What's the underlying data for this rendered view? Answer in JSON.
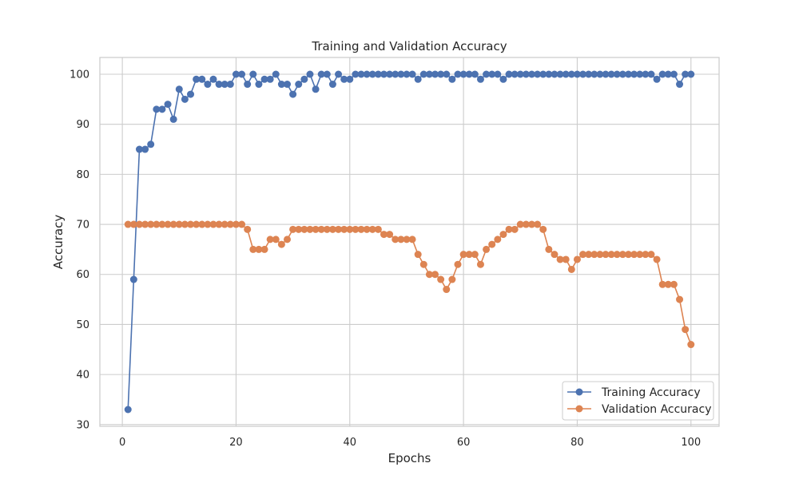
{
  "chart_data": {
    "type": "line",
    "title": "Training and Validation Accuracy",
    "xlabel": "Epochs",
    "ylabel": "Accuracy",
    "xlim": [
      -3.95,
      104.95
    ],
    "ylim": [
      29.65,
      103.35
    ],
    "xticks": [
      0,
      20,
      40,
      60,
      80,
      100
    ],
    "yticks": [
      30,
      40,
      50,
      60,
      70,
      80,
      90,
      100
    ],
    "grid": true,
    "legend": "lower-right",
    "x": [
      1,
      2,
      3,
      4,
      5,
      6,
      7,
      8,
      9,
      10,
      11,
      12,
      13,
      14,
      15,
      16,
      17,
      18,
      19,
      20,
      21,
      22,
      23,
      24,
      25,
      26,
      27,
      28,
      29,
      30,
      31,
      32,
      33,
      34,
      35,
      36,
      37,
      38,
      39,
      40,
      41,
      42,
      43,
      44,
      45,
      46,
      47,
      48,
      49,
      50,
      51,
      52,
      53,
      54,
      55,
      56,
      57,
      58,
      59,
      60,
      61,
      62,
      63,
      64,
      65,
      66,
      67,
      68,
      69,
      70,
      71,
      72,
      73,
      74,
      75,
      76,
      77,
      78,
      79,
      80,
      81,
      82,
      83,
      84,
      85,
      86,
      87,
      88,
      89,
      90,
      91,
      92,
      93,
      94,
      95,
      96,
      97,
      98,
      99,
      100
    ],
    "series": [
      {
        "name": "Training Accuracy",
        "color": "#4c72b0",
        "values": [
          33,
          59,
          85,
          85,
          86,
          93,
          93,
          94,
          91,
          97,
          95,
          96,
          99,
          99,
          98,
          99,
          98,
          98,
          98,
          100,
          100,
          98,
          100,
          98,
          99,
          99,
          100,
          98,
          98,
          96,
          98,
          99,
          100,
          97,
          100,
          100,
          98,
          100,
          99,
          99,
          100,
          100,
          100,
          100,
          100,
          100,
          100,
          100,
          100,
          100,
          100,
          99,
          100,
          100,
          100,
          100,
          100,
          99,
          100,
          100,
          100,
          100,
          99,
          100,
          100,
          100,
          99,
          100,
          100,
          100,
          100,
          100,
          100,
          100,
          100,
          100,
          100,
          100,
          100,
          100,
          100,
          100,
          100,
          100,
          100,
          100,
          100,
          100,
          100,
          100,
          100,
          100,
          100,
          99,
          100,
          100,
          100,
          98,
          100,
          100
        ]
      },
      {
        "name": "Validation Accuracy",
        "color": "#dd8452",
        "values": [
          70,
          70,
          70,
          70,
          70,
          70,
          70,
          70,
          70,
          70,
          70,
          70,
          70,
          70,
          70,
          70,
          70,
          70,
          70,
          70,
          70,
          69,
          65,
          65,
          65,
          67,
          67,
          66,
          67,
          69,
          69,
          69,
          69,
          69,
          69,
          69,
          69,
          69,
          69,
          69,
          69,
          69,
          69,
          69,
          69,
          68,
          68,
          67,
          67,
          67,
          67,
          64,
          62,
          60,
          60,
          59,
          57,
          59,
          62,
          64,
          64,
          64,
          62,
          65,
          66,
          67,
          68,
          69,
          69,
          70,
          70,
          70,
          70,
          69,
          65,
          64,
          63,
          63,
          61,
          63,
          64,
          64,
          64,
          64,
          64,
          64,
          64,
          64,
          64,
          64,
          64,
          64,
          64,
          63,
          58,
          58,
          58,
          55,
          49,
          46
        ]
      }
    ]
  }
}
